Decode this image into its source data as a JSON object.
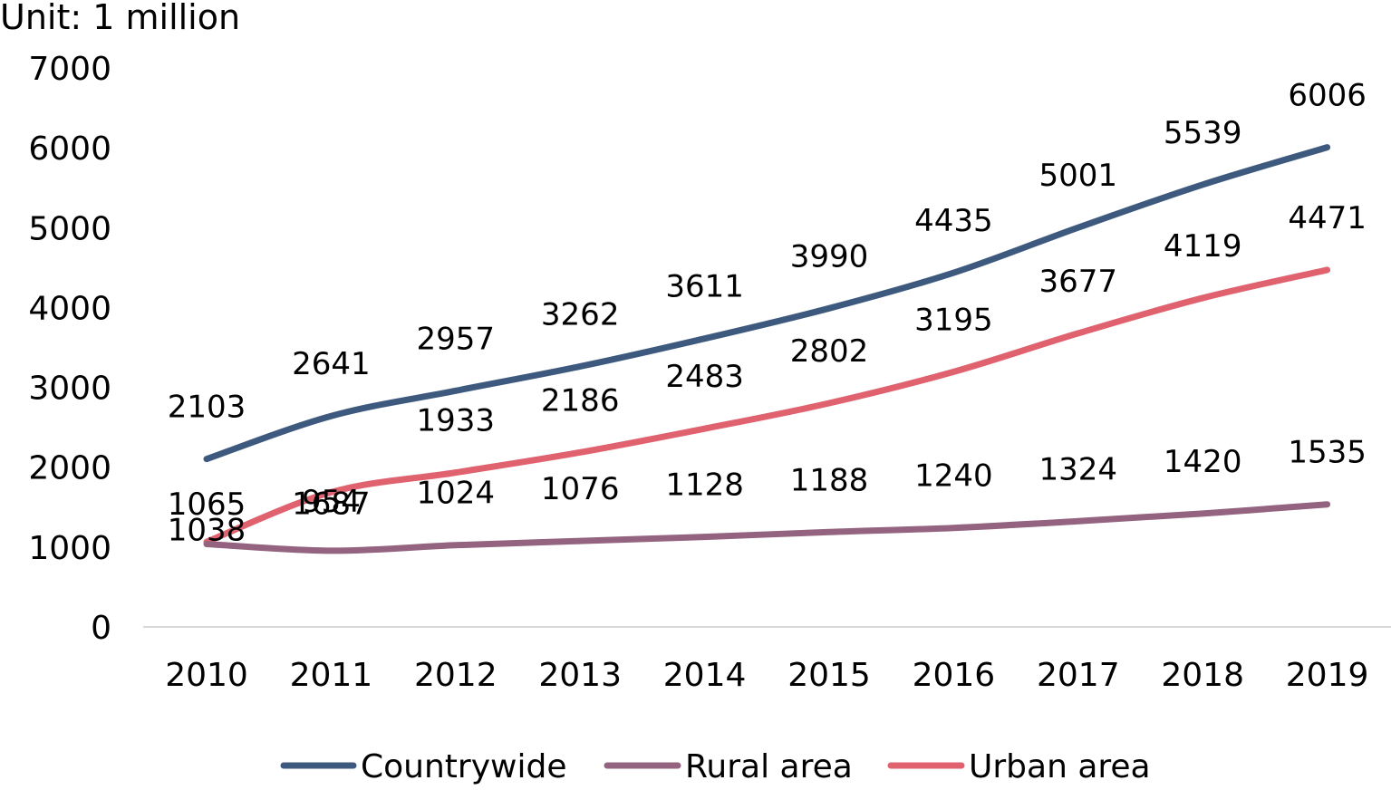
{
  "chart_data": {
    "type": "line",
    "title": "",
    "unit_label": "Unit: 1 million",
    "xlabel": "",
    "ylabel": "",
    "categories": [
      "2010",
      "2011",
      "2012",
      "2013",
      "2014",
      "2015",
      "2016",
      "2017",
      "2018",
      "2019"
    ],
    "ylim": [
      0,
      7000
    ],
    "yticks": [
      0,
      1000,
      2000,
      3000,
      4000,
      5000,
      6000,
      7000
    ],
    "grid": false,
    "legend_position": "bottom-center",
    "series": [
      {
        "name": "Countrywide",
        "color": "#3d5a7e",
        "values": [
          2103,
          2641,
          2957,
          3262,
          3611,
          3990,
          4435,
          5001,
          5539,
          6006
        ]
      },
      {
        "name": "Rural area",
        "color": "#936380",
        "values": [
          1038,
          954,
          1024,
          1076,
          1128,
          1188,
          1240,
          1324,
          1420,
          1535
        ]
      },
      {
        "name": "Urban area",
        "color": "#e0626f",
        "values": [
          1065,
          1687,
          1933,
          2186,
          2483,
          2802,
          3195,
          3677,
          4119,
          4471
        ]
      }
    ]
  }
}
